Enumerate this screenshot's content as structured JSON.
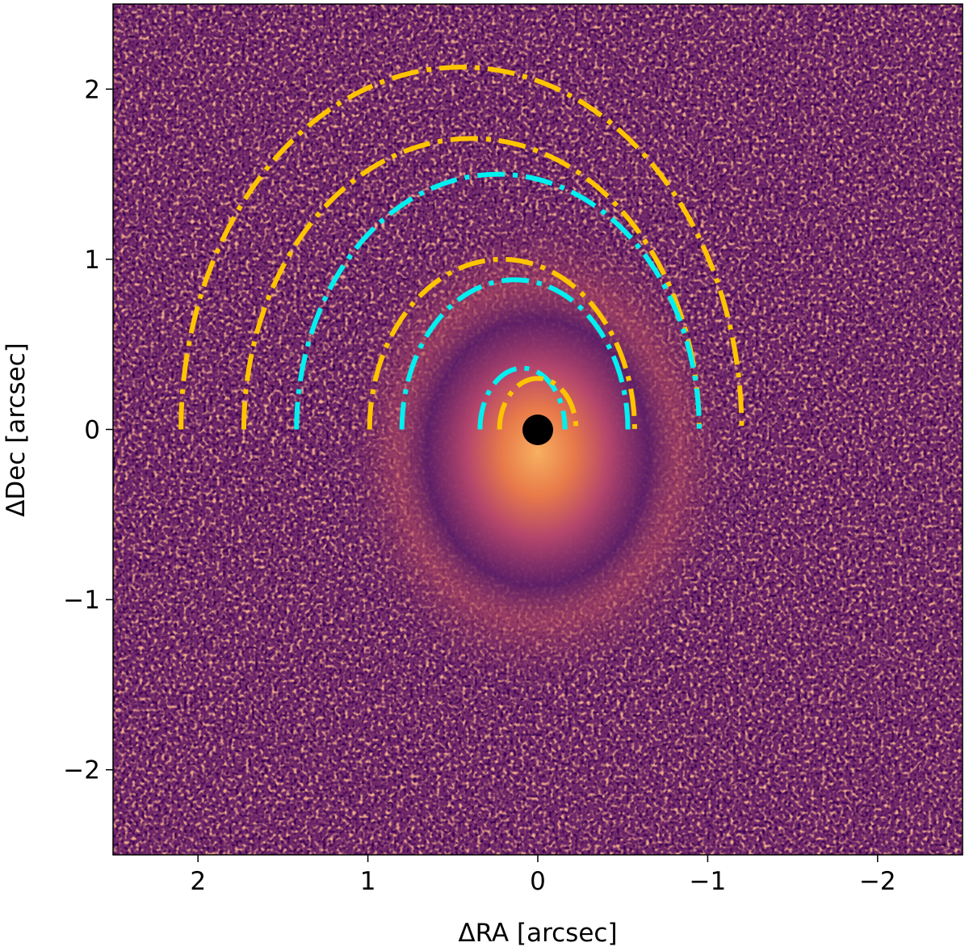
{
  "chart_data": {
    "type": "image",
    "xlabel": "ΔRA [arcsec]",
    "ylabel": "ΔDec [arcsec]",
    "xlim": [
      2.5,
      -2.5
    ],
    "ylim": [
      -2.5,
      2.5
    ],
    "xticks": [
      2,
      1,
      0,
      {
        "value": -1,
        "label": "−1"
      },
      {
        "value": -2,
        "label": "−2"
      }
    ],
    "yticks": [
      {
        "value": -2,
        "label": "−2"
      },
      {
        "value": -1,
        "label": "−1"
      },
      0,
      1,
      2
    ],
    "ellipses": [
      {
        "color": "#ffc400",
        "cx": 0.45,
        "cy": 0,
        "a": 1.65,
        "b": 2.13
      },
      {
        "color": "#ffc400",
        "cx": 0.39,
        "cy": 0,
        "a": 1.34,
        "b": 1.71
      },
      {
        "color": "#00f0f0",
        "cx": 0.235,
        "cy": 0,
        "a": 1.185,
        "b": 1.5
      },
      {
        "color": "#ffc400",
        "cx": 0.21,
        "cy": 0,
        "a": 0.78,
        "b": 1.0
      },
      {
        "color": "#00f0f0",
        "cx": 0.135,
        "cy": 0,
        "a": 0.665,
        "b": 0.88
      },
      {
        "color": "#00f0f0",
        "cx": 0.09,
        "cy": 0,
        "a": 0.25,
        "b": 0.36
      },
      {
        "color": "#ffc400",
        "cx": 0,
        "cy": 0,
        "a": 0.225,
        "b": 0.3
      }
    ]
  }
}
